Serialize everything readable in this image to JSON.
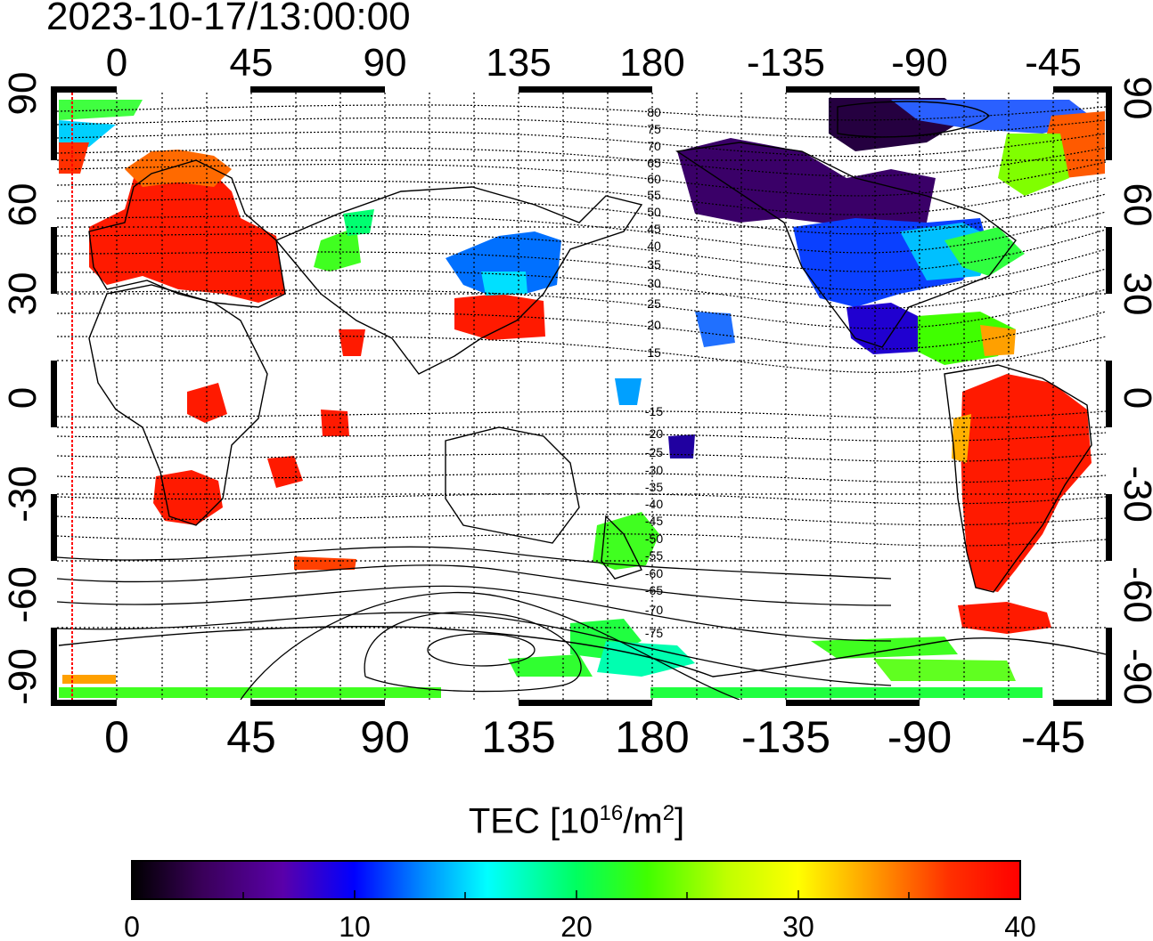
{
  "header": {
    "timestamp": "2023-10-17/13:00:00"
  },
  "map": {
    "top_lon_ticks": [
      "0",
      "45",
      "90",
      "135",
      "180",
      "-135",
      "-90",
      "-45"
    ],
    "bottom_lon_ticks": [
      "0",
      "45",
      "90",
      "135",
      "180",
      "-135",
      "-90",
      "-45"
    ],
    "left_lat_ticks": [
      "90",
      "60",
      "30",
      "0",
      "-30",
      "-60",
      "-90"
    ],
    "right_lat_ticks": [
      "90",
      "60",
      "30",
      "0",
      "-30",
      "-60",
      "-90"
    ],
    "contour_labels_north": [
      "80",
      "75",
      "70",
      "65",
      "60",
      "55",
      "50",
      "45",
      "40",
      "35",
      "30",
      "25",
      "20",
      "15"
    ],
    "contour_labels_south": [
      "-15",
      "-20",
      "-25",
      "-30",
      "-35",
      "-40",
      "-45",
      "-50",
      "-55",
      "-60",
      "-65",
      "-70",
      "-75"
    ],
    "terminator_color": "#ff0000"
  },
  "colorbar": {
    "title_main": "TEC  [10",
    "title_sup1": "16",
    "title_mid": "/m",
    "title_sup2": "2",
    "title_end": "]",
    "tick_labels": [
      "0",
      "10",
      "20",
      "30",
      "40"
    ],
    "min": 0,
    "max": 40,
    "stops": [
      "#000000",
      "#3a005a",
      "#5a00aa",
      "#0000ff",
      "#0090ff",
      "#00ffff",
      "#00ff60",
      "#40ff00",
      "#c0ff00",
      "#ffff00",
      "#ffa000",
      "#ff3000",
      "#ff0000"
    ]
  }
}
